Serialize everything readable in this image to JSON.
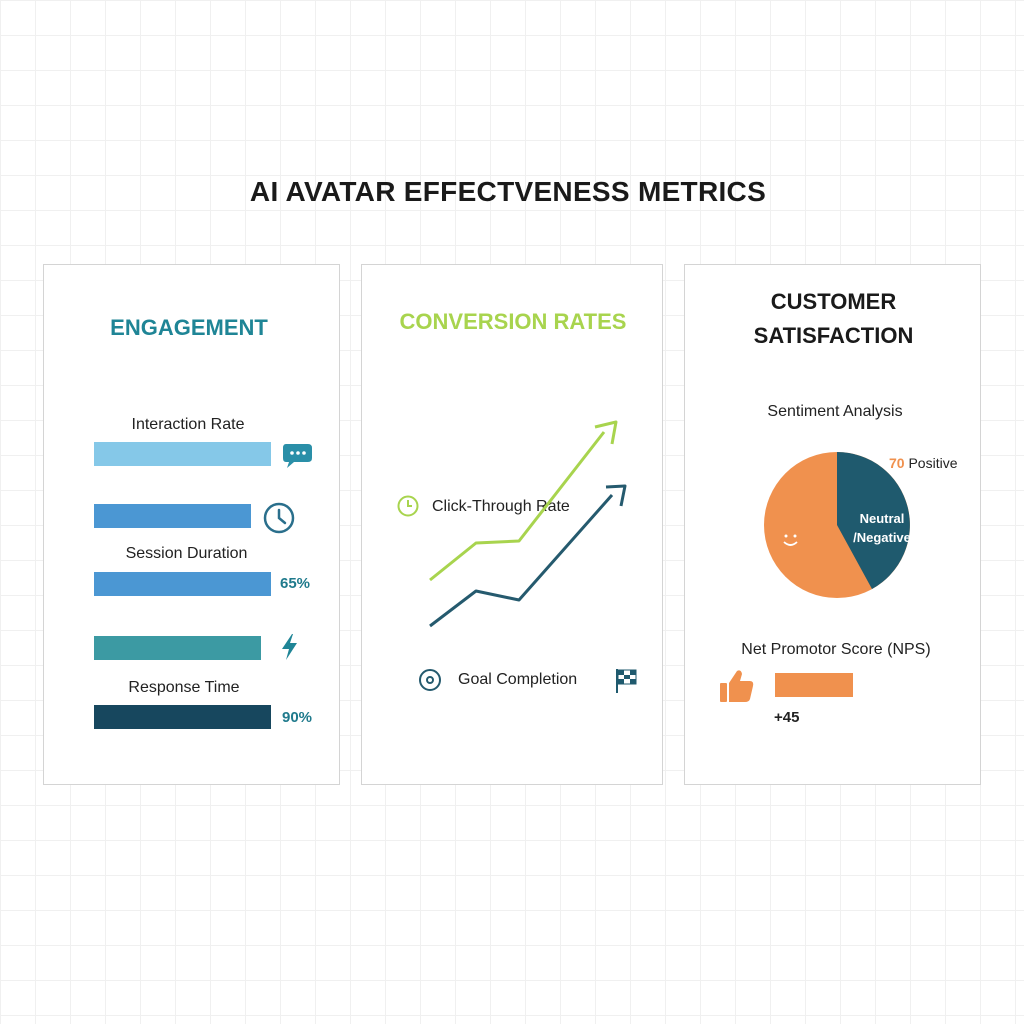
{
  "title": "AI AVATAR EFFECTVENESS METRICS",
  "engagement": {
    "title": "ENGAGEMENT",
    "interaction_label": "Interaction Rate",
    "session_label": "Session Duration",
    "session_value": "65%",
    "response_label": "Response Time",
    "response_value": "90%",
    "bar_colors": [
      "#85c8e8",
      "#4b97d3",
      "#4b97d3",
      "#3c9aa3",
      "#17475e"
    ],
    "icons": [
      "chat-bubble-icon",
      "clock-icon",
      "lightning-icon"
    ]
  },
  "conversion": {
    "title": "CONVERSION RATES",
    "ctr_label": "Click-Through Rate",
    "goal_label": "Goal Completion",
    "series_colors": [
      "#a8d44e",
      "#255a6e"
    ],
    "icons": [
      "timer-icon",
      "target-icon",
      "checkered-flag-icon"
    ]
  },
  "satisfaction": {
    "title_line1": "CUSTOMER",
    "title_line2": "SATISFACTION",
    "sentiment_label": "Sentiment Analysis",
    "positive_value": "70",
    "positive_label": "Positive",
    "neutral_line1": "Neutral",
    "neutral_line2": "/Negative",
    "nps_label": "Net Promotor Score (NPS)",
    "nps_value": "+45",
    "colors": {
      "positive": "#f0914e",
      "neutral": "#1f5a6e"
    },
    "icons": [
      "smiley-icon",
      "thumbs-up-icon"
    ]
  }
}
